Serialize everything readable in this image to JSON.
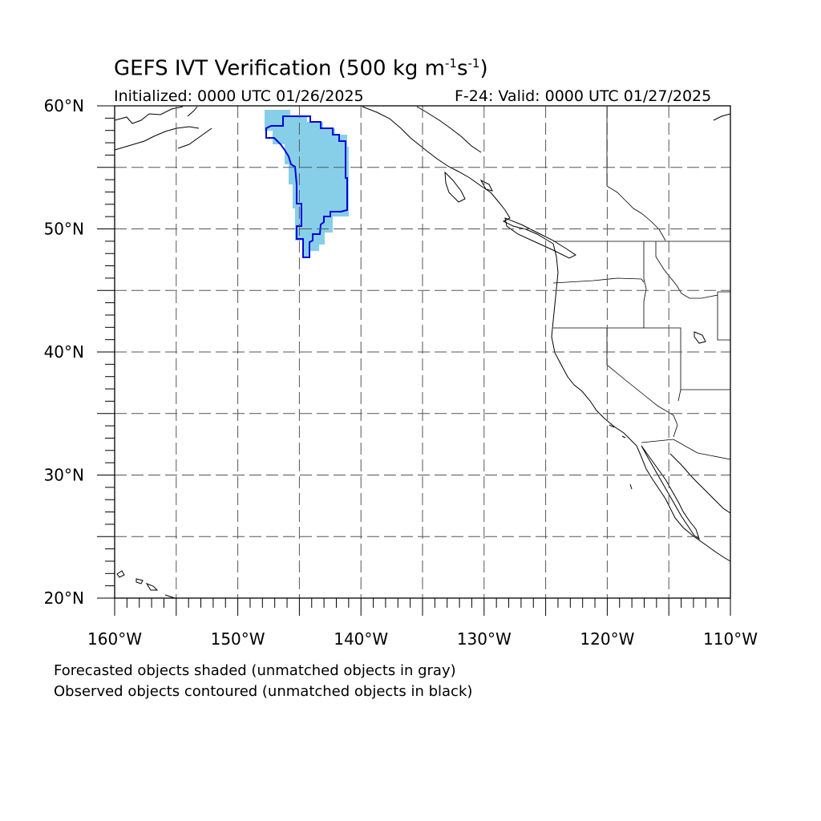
{
  "title": {
    "main": "GEFS IVT Verification (500 kg m",
    "sup1": "-1",
    "mid": "s",
    "sup2": "-1",
    "end": ")"
  },
  "initialized": "Initialized: 0000 UTC 01/26/2025",
  "valid": "F-24: Valid: 0000 UTC 01/27/2025",
  "notes": {
    "forecast": "Forecasted objects shaded (unmatched objects in gray)",
    "observed": "Observed objects contoured (unmatched objects in black)"
  },
  "map": {
    "lon_range": [
      -160,
      -110
    ],
    "lat_range": [
      20,
      60
    ],
    "grid_dashed": true,
    "lat_labels": [
      "20°N",
      "30°N",
      "40°N",
      "50°N",
      "60°N"
    ],
    "lon_labels": [
      "160°W",
      "150°W",
      "140°W",
      "130°W",
      "120°W",
      "110°W"
    ],
    "forecast_fill_color": "#87cfe8",
    "observed_contour_color": "#0000e0"
  }
}
